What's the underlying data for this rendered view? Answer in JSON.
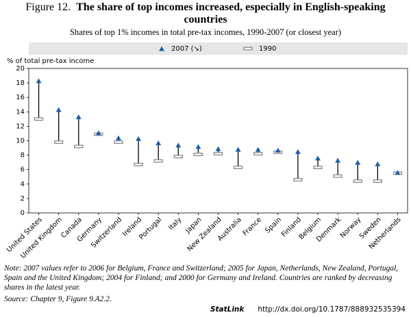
{
  "chart_data": {
    "type": "dumbbell",
    "figure_label": "Figure 12.",
    "title": "The share of top incomes increased, especially in English-speaking countries",
    "subtitle": "Shares of top 1% incomes in total pre-tax incomes, 1990-2007 (or closest year)",
    "y_label": "% of total pre-tax income",
    "categories": [
      "United States",
      "United Kingdom",
      "Canada",
      "Germany",
      "Switzerland",
      "Ireland",
      "Portugal",
      "Italy",
      "Japan",
      "New Zealand",
      "Australia",
      "France",
      "Spain",
      "Finland",
      "Belgium",
      "Denmark",
      "Norway",
      "Sweden",
      "Netherlands"
    ],
    "series": [
      {
        "name": "2007 (↘)",
        "color": "#1f5fa8",
        "values": [
          18.3,
          14.3,
          13.3,
          11.1,
          10.4,
          10.3,
          9.7,
          9.4,
          9.2,
          8.9,
          8.8,
          8.8,
          8.7,
          8.5,
          7.6,
          7.3,
          7.0,
          6.8,
          5.6
        ]
      },
      {
        "name": "1990",
        "color": "#808080",
        "values": [
          13.0,
          9.8,
          9.2,
          10.9,
          9.8,
          6.7,
          7.2,
          7.8,
          8.1,
          8.2,
          6.3,
          8.2,
          8.4,
          4.6,
          6.3,
          5.1,
          4.4,
          4.4,
          5.5
        ]
      }
    ],
    "ylim": [
      0,
      20
    ],
    "yticks": [
      0,
      2,
      4,
      6,
      8,
      10,
      12,
      14,
      16,
      18,
      20
    ],
    "grid": false,
    "legend": "top",
    "note": "Note: 2007 values refer to 2006 for Belgium, France and Switzerland; 2005 for Japan, Netherlands, New Zealand, Portugal, Spain and the United Kingdom; 2004 for Finland; and 2000 for Germany and Ireland. Countries are ranked by decreasing shares in the latest year.",
    "source": "Source: Chapter 9, Figure 9.A2.2.",
    "statlink_label": "StatLink",
    "statlink_url": "http://dx.doi.org/10.1787/888932535394"
  }
}
